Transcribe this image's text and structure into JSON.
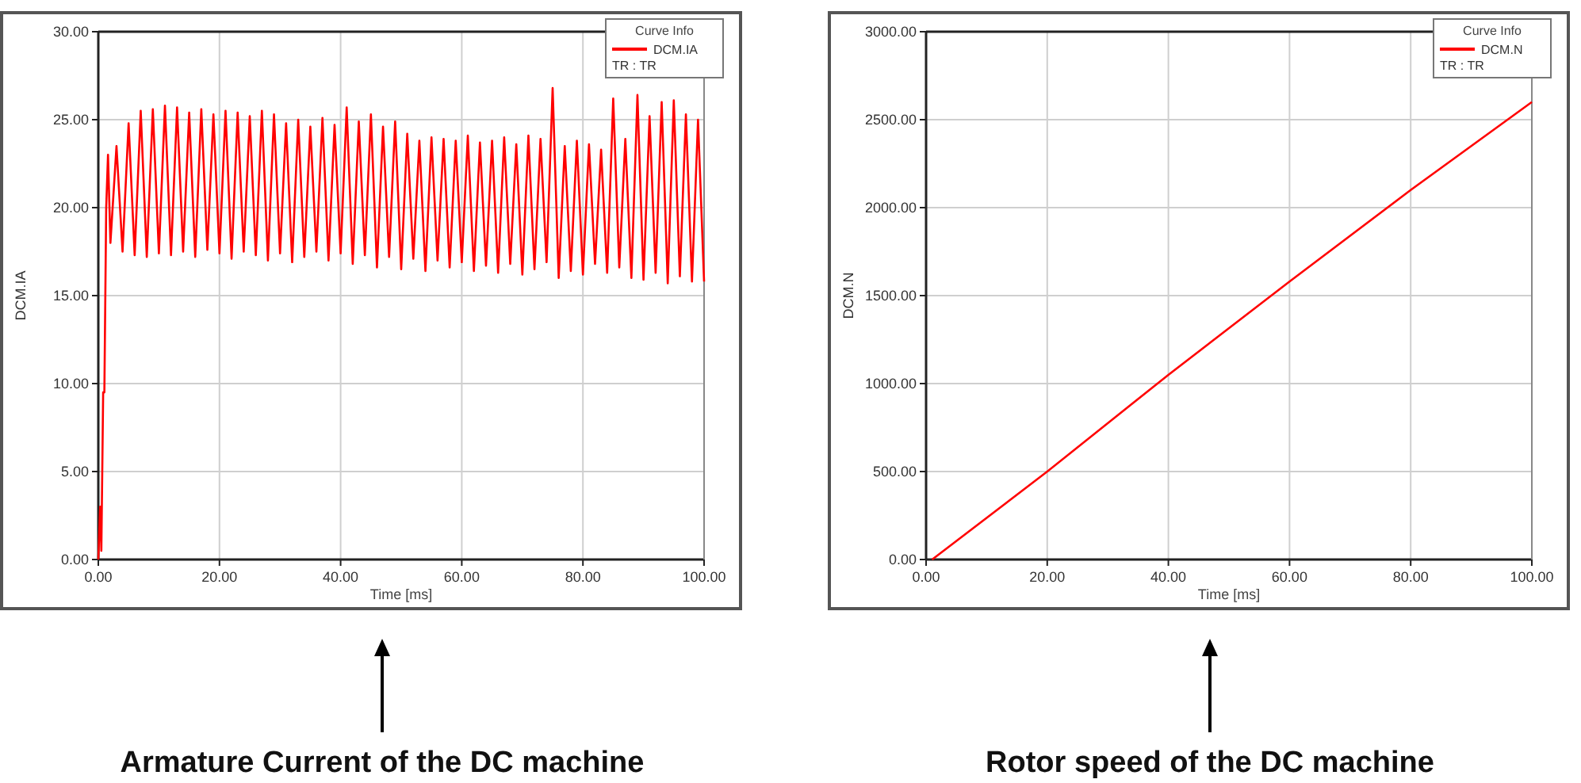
{
  "chart_data": [
    {
      "type": "line",
      "xlabel": "Time [ms]",
      "ylabel": "DCM.IA",
      "legend_title": "Curve Info",
      "annotations": [
        "TR : TR",
        "Armature Current of the DC machine"
      ],
      "grid": true,
      "legend": "top right",
      "marker": "none",
      "line_style": "solid",
      "xlim": [
        0,
        100
      ],
      "xticks": [
        {
          "value": 0,
          "label": "0.00"
        },
        {
          "value": 20,
          "label": "20.00"
        },
        {
          "value": 40,
          "label": "40.00"
        },
        {
          "value": 60,
          "label": "60.00"
        },
        {
          "value": 80,
          "label": "80.00"
        },
        {
          "value": 100,
          "label": "100.00"
        }
      ],
      "ylim": [
        0,
        30
      ],
      "yticks": [
        {
          "value": 0,
          "label": "0.00"
        },
        {
          "value": 5,
          "label": "5.00"
        },
        {
          "value": 10,
          "label": "10.00"
        },
        {
          "value": 15,
          "label": "15.00"
        },
        {
          "value": 20,
          "label": "20.00"
        },
        {
          "value": 25,
          "label": "25.00"
        },
        {
          "value": 30,
          "label": "30.00"
        }
      ],
      "series": [
        {
          "name": "DCM.IA",
          "color": "#ff0000",
          "x": [
            0,
            0.3,
            0.5,
            0.8,
            1,
            1.3,
            1.6,
            2,
            3,
            4,
            5,
            6,
            7,
            8,
            9,
            10,
            11,
            12,
            13,
            14,
            15,
            16,
            17,
            18,
            19,
            20,
            21,
            22,
            23,
            24,
            25,
            26,
            27,
            28,
            29,
            30,
            31,
            32,
            33,
            34,
            35,
            36,
            37,
            38,
            39,
            40,
            41,
            42,
            43,
            44,
            45,
            46,
            47,
            48,
            49,
            50,
            51,
            52,
            53,
            54,
            55,
            56,
            57,
            58,
            59,
            60,
            61,
            62,
            63,
            64,
            65,
            66,
            67,
            68,
            69,
            70,
            71,
            72,
            73,
            74,
            75,
            76,
            77,
            78,
            79,
            80,
            81,
            82,
            83,
            84,
            85,
            86,
            87,
            88,
            89,
            90,
            91,
            92,
            93,
            94,
            95,
            96,
            97,
            98,
            99,
            100
          ],
          "values": [
            0,
            3,
            0.5,
            9.5,
            9.5,
            20,
            23,
            18,
            23.5,
            17.5,
            24.8,
            17.3,
            25.5,
            17.2,
            25.6,
            17.4,
            25.8,
            17.3,
            25.7,
            17.5,
            25.4,
            17.2,
            25.6,
            17.6,
            25.3,
            17.4,
            25.5,
            17.1,
            25.4,
            17.5,
            25.2,
            17.3,
            25.5,
            17,
            25.3,
            17.4,
            24.8,
            16.9,
            25,
            17.2,
            24.6,
            17.5,
            25.1,
            17,
            24.7,
            17.4,
            25.7,
            16.8,
            24.9,
            17.3,
            25.3,
            16.6,
            24.6,
            17.2,
            24.9,
            16.5,
            24.2,
            17.1,
            23.8,
            16.4,
            24,
            17,
            23.9,
            16.6,
            23.8,
            16.9,
            24.1,
            16.4,
            23.7,
            16.7,
            23.8,
            16.3,
            24,
            16.8,
            23.6,
            16.2,
            24.1,
            16.5,
            23.9,
            16.9,
            26.8,
            16,
            23.5,
            16.4,
            23.8,
            16.2,
            23.6,
            16.8,
            23.3,
            16.3,
            26.2,
            16.6,
            23.9,
            16,
            26.4,
            15.9,
            25.2,
            16.3,
            26,
            15.7,
            26.1,
            16.1,
            25.3,
            15.8,
            25,
            15.8
          ]
        }
      ]
    },
    {
      "type": "line",
      "xlabel": "Time [ms]",
      "ylabel": "DCM.N",
      "legend_title": "Curve Info",
      "annotations": [
        "TR : TR",
        "Rotor speed of the DC machine"
      ],
      "grid": true,
      "legend": "top right",
      "marker": "none",
      "line_style": "solid",
      "xlim": [
        0,
        100
      ],
      "xticks": [
        {
          "value": 0,
          "label": "0.00"
        },
        {
          "value": 20,
          "label": "20.00"
        },
        {
          "value": 40,
          "label": "40.00"
        },
        {
          "value": 60,
          "label": "60.00"
        },
        {
          "value": 80,
          "label": "80.00"
        },
        {
          "value": 100,
          "label": "100.00"
        }
      ],
      "ylim": [
        0,
        3000
      ],
      "yticks": [
        {
          "value": 0,
          "label": "0.00"
        },
        {
          "value": 500,
          "label": "500.00"
        },
        {
          "value": 1000,
          "label": "1000.00"
        },
        {
          "value": 1500,
          "label": "1500.00"
        },
        {
          "value": 2000,
          "label": "2000.00"
        },
        {
          "value": 2500,
          "label": "2500.00"
        },
        {
          "value": 3000,
          "label": "3000.00"
        }
      ],
      "series": [
        {
          "name": "DCM.N",
          "color": "#ff0000",
          "x": [
            1,
            20,
            40,
            60,
            80,
            100
          ],
          "values": [
            0,
            500,
            1050,
            1580,
            2100,
            2600
          ]
        }
      ]
    }
  ]
}
